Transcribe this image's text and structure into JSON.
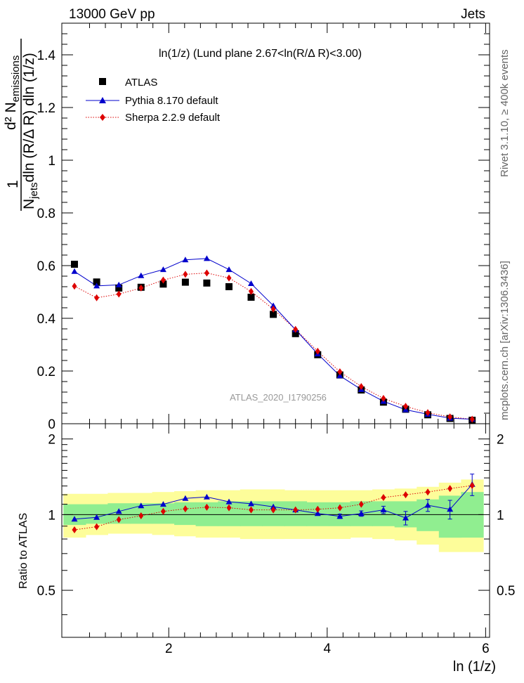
{
  "header": {
    "left": "13000 GeV pp",
    "right": "Jets"
  },
  "side_labels": {
    "rivet": "Rivet 3.1.10, ≥ 400k events",
    "mcplots": "mcplots.cern.ch [arXiv:1306.3436]"
  },
  "chart_data": {
    "type": "scatter",
    "title": "ln(1/z) (Lund plane 2.67<ln(R/Δ R)<3.00)",
    "watermark": "ATLAS_2020_I1790256",
    "xlabel": "ln (1/z)",
    "ylabel": "1/N_jets dln (R/Δ R) dln (1/z) × d² N_emissions",
    "ylabel_parts": {
      "numerator": "d² N",
      "numerator_sub": "emissions",
      "one": "1",
      "den_N": "N",
      "den_sub": "jets",
      "den_rest": "dln (R/Δ R) dln (1/z)"
    },
    "ratio_ylabel": "Ratio to ATLAS",
    "xlim": [
      0.65,
      6.05
    ],
    "ylim_main": [
      0,
      1.52
    ],
    "ylim_ratio": [
      0.325,
      2.3
    ],
    "x_ticks": [
      2,
      4,
      6
    ],
    "y_ticks_main": [
      0,
      0.2,
      0.4,
      0.6,
      0.8,
      1,
      1.2,
      1.4
    ],
    "y_ticks_main_labels": [
      "0",
      "0.2",
      "0.4",
      "0.6",
      "0.8",
      "1",
      "1.2",
      "1.4"
    ],
    "y_ticks_ratio": [
      0.5,
      1,
      2
    ],
    "y_ticks_ratio_labels": [
      "0.5",
      "1",
      "2"
    ],
    "x": [
      0.81,
      1.09,
      1.37,
      1.65,
      1.93,
      2.21,
      2.48,
      2.76,
      3.04,
      3.32,
      3.6,
      3.88,
      4.16,
      4.43,
      4.71,
      4.99,
      5.27,
      5.55,
      5.83
    ],
    "bin_edges": [
      0.67,
      0.95,
      1.23,
      1.51,
      1.79,
      2.07,
      2.34,
      2.62,
      2.9,
      3.18,
      3.46,
      3.74,
      4.02,
      4.29,
      4.57,
      4.85,
      5.13,
      5.41,
      5.69,
      5.97
    ],
    "series": [
      {
        "name": "ATLAS",
        "color": "#000000",
        "marker": "square",
        "values": [
          0.605,
          0.538,
          0.515,
          0.518,
          0.53,
          0.537,
          0.534,
          0.52,
          0.48,
          0.415,
          0.342,
          0.262,
          0.185,
          0.128,
          0.082,
          0.055,
          0.034,
          0.02,
          0.013
        ]
      },
      {
        "name": "Pythia 8.170 default",
        "color": "#0000cc",
        "marker": "triangle",
        "line": "solid",
        "values": [
          0.578,
          0.523,
          0.527,
          0.562,
          0.585,
          0.622,
          0.627,
          0.585,
          0.532,
          0.448,
          0.357,
          0.265,
          0.182,
          0.13,
          0.085,
          0.053,
          0.036,
          0.021,
          0.017
        ]
      },
      {
        "name": "Sherpa 2.2.9 default",
        "color": "#dd0000",
        "marker": "diamond",
        "line": "dotted",
        "values": [
          0.522,
          0.478,
          0.492,
          0.515,
          0.545,
          0.567,
          0.572,
          0.553,
          0.502,
          0.435,
          0.358,
          0.275,
          0.197,
          0.141,
          0.096,
          0.066,
          0.042,
          0.026,
          0.017
        ]
      }
    ],
    "ratio": {
      "pythia": [
        0.96,
        0.975,
        1.03,
        1.085,
        1.1,
        1.16,
        1.175,
        1.125,
        1.105,
        1.075,
        1.045,
        1.01,
        0.985,
        1.01,
        1.045,
        0.97,
        1.09,
        1.05,
        1.32
      ],
      "pythia_err": [
        0,
        0,
        0,
        0,
        0,
        0,
        0,
        0,
        0,
        0,
        0,
        0,
        0.02,
        0.025,
        0.035,
        0.06,
        0.06,
        0.09,
        0.13
      ],
      "sherpa": [
        0.87,
        0.895,
        0.955,
        0.99,
        1.03,
        1.055,
        1.07,
        1.065,
        1.045,
        1.045,
        1.045,
        1.05,
        1.065,
        1.1,
        1.17,
        1.2,
        1.23,
        1.27,
        1.305
      ],
      "band_yellow": [
        [
          0.81,
          1.21
        ],
        [
          0.83,
          1.21
        ],
        [
          0.84,
          1.22
        ],
        [
          0.84,
          1.22
        ],
        [
          0.83,
          1.23
        ],
        [
          0.82,
          1.24
        ],
        [
          0.81,
          1.25
        ],
        [
          0.81,
          1.25
        ],
        [
          0.8,
          1.26
        ],
        [
          0.8,
          1.26
        ],
        [
          0.8,
          1.25
        ],
        [
          0.8,
          1.25
        ],
        [
          0.8,
          1.25
        ],
        [
          0.81,
          1.25
        ],
        [
          0.8,
          1.26
        ],
        [
          0.79,
          1.27
        ],
        [
          0.76,
          1.29
        ],
        [
          0.71,
          1.34
        ],
        [
          0.71,
          1.38
        ]
      ],
      "band_green": [
        [
          0.91,
          1.1
        ],
        [
          0.92,
          1.1
        ],
        [
          0.92,
          1.11
        ],
        [
          0.92,
          1.11
        ],
        [
          0.92,
          1.11
        ],
        [
          0.91,
          1.12
        ],
        [
          0.9,
          1.12
        ],
        [
          0.9,
          1.13
        ],
        [
          0.9,
          1.13
        ],
        [
          0.9,
          1.13
        ],
        [
          0.9,
          1.13
        ],
        [
          0.9,
          1.12
        ],
        [
          0.9,
          1.12
        ],
        [
          0.9,
          1.13
        ],
        [
          0.9,
          1.13
        ],
        [
          0.89,
          1.13
        ],
        [
          0.86,
          1.15
        ],
        [
          0.81,
          1.19
        ],
        [
          0.81,
          1.23
        ]
      ]
    }
  }
}
